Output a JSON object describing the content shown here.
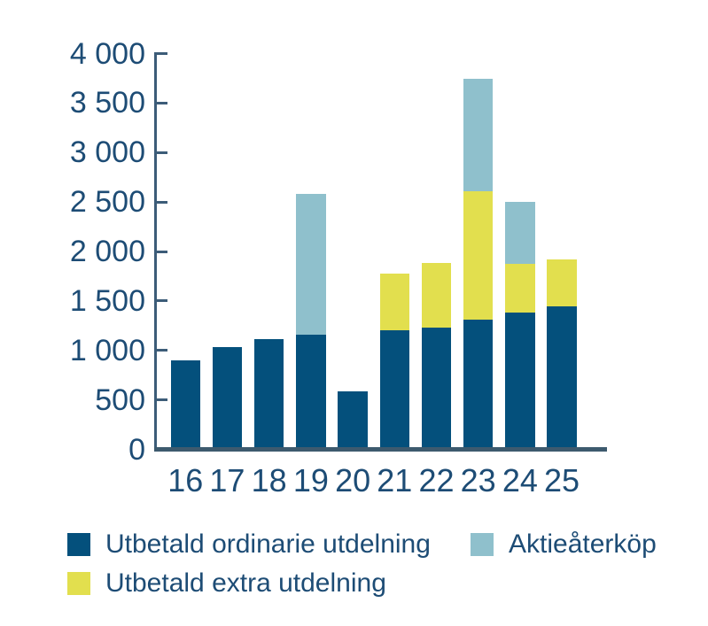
{
  "chart_data": {
    "type": "bar",
    "stacked": true,
    "title": "",
    "xlabel": "",
    "ylabel": "",
    "categories": [
      "16",
      "17",
      "18",
      "19",
      "20",
      "21",
      "22",
      "23",
      "24",
      "25"
    ],
    "series": [
      {
        "name": "Utbetald ordinarie utdelning",
        "color": "#04507c",
        "values": [
          880,
          1010,
          1090,
          1140,
          560,
          1180,
          1210,
          1290,
          1360,
          1420
        ]
      },
      {
        "name": "Utbetald extra utdelning",
        "color": "#e2df4e",
        "values": [
          0,
          0,
          0,
          0,
          0,
          570,
          650,
          1300,
          490,
          480
        ]
      },
      {
        "name": "Aktieåterköp",
        "color": "#8fc0cc",
        "values": [
          0,
          0,
          0,
          1420,
          0,
          0,
          0,
          1130,
          630,
          0
        ]
      }
    ],
    "stack_order_bottom_to_top": [
      "Utbetald ordinarie utdelning",
      "Utbetald extra utdelning",
      "Aktieåterköp"
    ],
    "ylim": [
      0,
      4000
    ],
    "ytick_step": 500,
    "ytick_labels": [
      "0",
      "500",
      "1 000",
      "1 500",
      "2 000",
      "2 500",
      "3 000",
      "3 500",
      "4 000"
    ],
    "grid": false,
    "legend_position": "bottom"
  },
  "colors": {
    "background": "#ffffff",
    "axis_line": "#3c5c78",
    "baseline": "#3d5a6e",
    "label_text": "#1d4c75"
  }
}
